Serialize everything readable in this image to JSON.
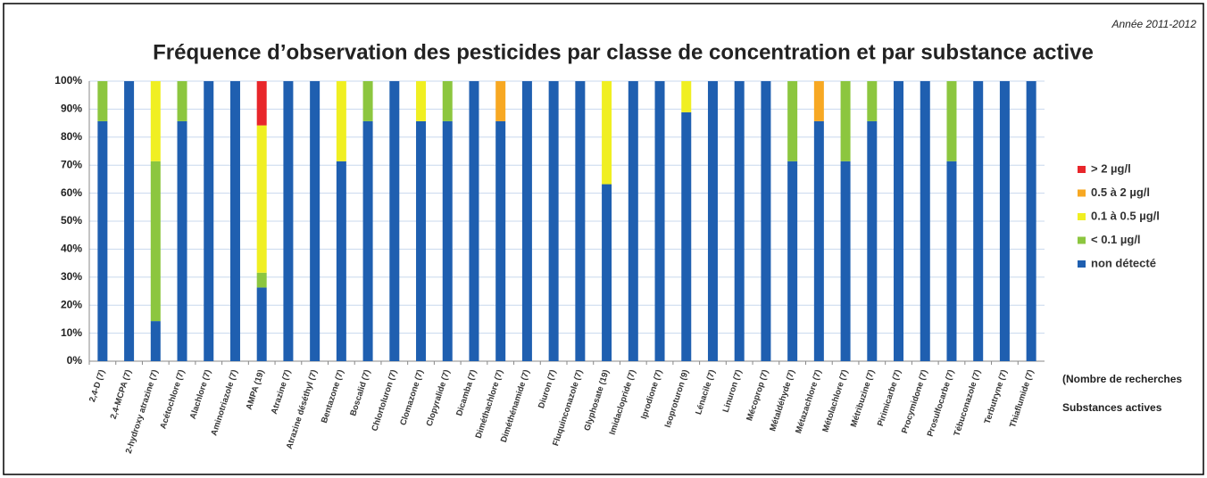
{
  "chart_data": {
    "type": "stacked_bar",
    "title": "Fréquence d’observation des pesticides par classe de concentration et par substance active",
    "subtitle": "Année 2011-2012",
    "x_note": "(Nombre de recherches",
    "x_label": "Substances actives",
    "categories": [
      "2,4-D (7)",
      "2,4-MCPA (7)",
      "2-hydroxy atrazine (7)",
      "Acétochlore (7)",
      "Alachlore (7)",
      "Aminotriazole (7)",
      "AMPA (19)",
      "Atrazine (7)",
      "Atrazine déséthyl (7)",
      "Bentazone (7)",
      "Boscalid (7)",
      "Chlortoluron (7)",
      "Clomazone (7)",
      "Clopyralide (7)",
      "Dicamba (7)",
      "Diméthachlore (7)",
      "Diméthénamide (7)",
      "Diuron (7)",
      "Fluquinconazole (7)",
      "Glyphosate (19)",
      "Imidaclopride (7)",
      "Iprodione (7)",
      "Isoproturon (9)",
      "Lénacile (7)",
      "Linuron (7)",
      "Mécoprop (7)",
      "Métaldéhyde (7)",
      "Métazachlore (7)",
      "Métolachlore (7)",
      "Métribuzine (7)",
      "Pirimicarbe (7)",
      "Procymidone (7)",
      "Prosulfocarbe (7)",
      "Tébuconazole (7)",
      "Terbutryne (7)",
      "Thiaflumide (7)"
    ],
    "series": [
      {
        "name": "non détecté",
        "color": "#1f5fb0",
        "values": [
          85.7,
          100,
          14.3,
          85.7,
          100,
          100,
          26.3,
          100,
          100,
          71.4,
          85.7,
          100,
          85.7,
          85.7,
          100,
          85.7,
          100,
          100,
          100,
          63.2,
          100,
          100,
          88.9,
          100,
          100,
          100,
          71.4,
          85.7,
          71.4,
          85.7,
          100,
          100,
          71.4,
          100,
          100,
          100
        ]
      },
      {
        "name": "< 0.1 µg/l",
        "color": "#8cc63f",
        "values": [
          14.3,
          0,
          57.1,
          14.3,
          0,
          0,
          5.3,
          0,
          0,
          0,
          14.3,
          0,
          0,
          14.3,
          0,
          0,
          0,
          0,
          0,
          0,
          0,
          0,
          0,
          0,
          0,
          0,
          28.6,
          0,
          28.6,
          14.3,
          0,
          0,
          28.6,
          0,
          0,
          0
        ]
      },
      {
        "name": "0.1 à 0.5 µg/l",
        "color": "#f0ef22",
        "values": [
          0,
          0,
          28.6,
          0,
          0,
          0,
          52.6,
          0,
          0,
          28.6,
          0,
          0,
          14.3,
          0,
          0,
          0,
          0,
          0,
          0,
          36.8,
          0,
          0,
          11.1,
          0,
          0,
          0,
          0,
          0,
          0,
          0,
          0,
          0,
          0,
          0,
          0,
          0
        ]
      },
      {
        "name": "0.5 à 2 µg/l",
        "color": "#f7a823",
        "values": [
          0,
          0,
          0,
          0,
          0,
          0,
          0,
          0,
          0,
          0,
          0,
          0,
          0,
          0,
          0,
          14.3,
          0,
          0,
          0,
          0,
          0,
          0,
          0,
          0,
          0,
          0,
          0,
          14.3,
          0,
          0,
          0,
          0,
          0,
          0,
          0,
          0
        ]
      },
      {
        "name": "> 2 µg/l",
        "color": "#e8262b",
        "values": [
          0,
          0,
          0,
          0,
          0,
          0,
          15.8,
          0,
          0,
          0,
          0,
          0,
          0,
          0,
          0,
          0,
          0,
          0,
          0,
          0,
          0,
          0,
          0,
          0,
          0,
          0,
          0,
          0,
          0,
          0,
          0,
          0,
          0,
          0,
          0,
          0
        ]
      }
    ],
    "ylim": [
      0,
      100
    ],
    "yticks": [
      {
        "value": 0,
        "label": "0%"
      },
      {
        "value": 10,
        "label": "10%"
      },
      {
        "value": 20,
        "label": "20%"
      },
      {
        "value": 30,
        "label": "30%"
      },
      {
        "value": 40,
        "label": "40%"
      },
      {
        "value": 50,
        "label": "50%"
      },
      {
        "value": 60,
        "label": "60%"
      },
      {
        "value": 70,
        "label": "70%"
      },
      {
        "value": 80,
        "label": "80%"
      },
      {
        "value": 90,
        "label": "90%"
      },
      {
        "value": 100,
        "label": "100%"
      }
    ],
    "grid": true,
    "legend": "right"
  }
}
